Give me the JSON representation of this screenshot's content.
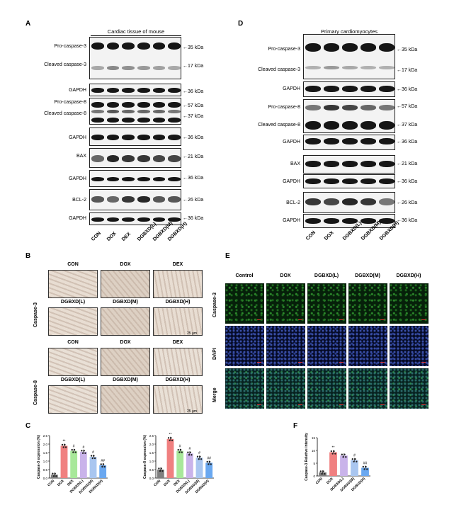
{
  "panels": {
    "a": "A",
    "b": "B",
    "c": "C",
    "d": "D",
    "e": "E",
    "f": "F"
  },
  "panel_a": {
    "header": "Cardiac tissue of mouse",
    "lanes": [
      "CON",
      "DOX",
      "DEX",
      "DGBXD(L)",
      "DGBXD(M)",
      "DGBXD(H)"
    ],
    "labels": {
      "pro_casp3": "Pro-caspase-3",
      "cleaved_casp3": "Cleaved caspase-3",
      "gapdh": "GAPDH",
      "pro_casp8": "Pro-caspase-8",
      "cleaved_casp8": "Cleaved caspase-8",
      "bax": "BAX",
      "bcl2": "BCL-2"
    },
    "kda": {
      "k35": "35 kDa",
      "k17": "17 kDa",
      "k36": "36 kDa",
      "k57": "57 kDa",
      "k37": "37 kDa",
      "k21": "21 kDa",
      "k26": "26 kDa"
    }
  },
  "panel_d": {
    "header": "Primary cardiomyocytes",
    "lanes": [
      "CON",
      "DOX",
      "DGBXD(L)",
      "DGBXD(M)",
      "DGBXD(H)"
    ]
  },
  "panel_b": {
    "row_labels": [
      "Caspase-3",
      "Caspase-8"
    ],
    "titles": [
      "CON",
      "DOX",
      "DEX",
      "DGBXD(L)",
      "DGBXD(M)",
      "DGBXD(H)"
    ],
    "scale": "25 μm"
  },
  "panel_e": {
    "columns": [
      "Control",
      "DOX",
      "DGBXD(L)",
      "DGBXD(M)",
      "DGBXD(H)"
    ],
    "rows": [
      "Caspase-3",
      "DAPI",
      "Merge"
    ]
  },
  "colors": {
    "con": "#808080",
    "dox": "#f08080",
    "dex": "#a8e89a",
    "l": "#c9b3ea",
    "m": "#a9c6f0",
    "h": "#6aa8f0"
  },
  "chart_data": [
    {
      "type": "bar",
      "ylabel": "Caspase-3 expression (%)",
      "categories": [
        "CON",
        "DOX",
        "DEX",
        "DGBXD(L)",
        "DGBXD(M)",
        "DGBXD(H)"
      ],
      "values": [
        0.2,
        1.9,
        1.6,
        1.55,
        1.25,
        0.75
      ],
      "sig": [
        "",
        "**",
        "#",
        "#",
        "#",
        "##"
      ],
      "ylim": [
        0,
        2.5
      ],
      "yticks": [
        "0.0",
        "0.5",
        "1.0",
        "1.5",
        "2.0",
        "2.5"
      ]
    },
    {
      "type": "bar",
      "ylabel": "Caspase-8 expression (%)",
      "categories": [
        "CON",
        "DOX",
        "DEX",
        "DGBXD(L)",
        "DGBXD(M)",
        "DGBXD(H)"
      ],
      "values": [
        0.5,
        2.3,
        1.6,
        1.45,
        1.2,
        0.9
      ],
      "sig": [
        "",
        "**",
        "#",
        "#",
        "#",
        "##"
      ],
      "ylim": [
        0,
        2.5
      ],
      "yticks": [
        "0.0",
        "0.5",
        "1.0",
        "1.5",
        "2.0",
        "2.5"
      ]
    },
    {
      "type": "bar",
      "ylabel": "Caspase-3 Relative intensity",
      "categories": [
        "CON",
        "DOX",
        "DGBXD(L)",
        "DGBXD(M)",
        "DGBXD(H)"
      ],
      "values": [
        1.4,
        9.3,
        8.0,
        6.2,
        3.2
      ],
      "sig": [
        "",
        "**",
        "",
        "#",
        "##"
      ],
      "ylim": [
        0,
        15
      ],
      "yticks": [
        "0",
        "5",
        "10",
        "15"
      ]
    }
  ]
}
